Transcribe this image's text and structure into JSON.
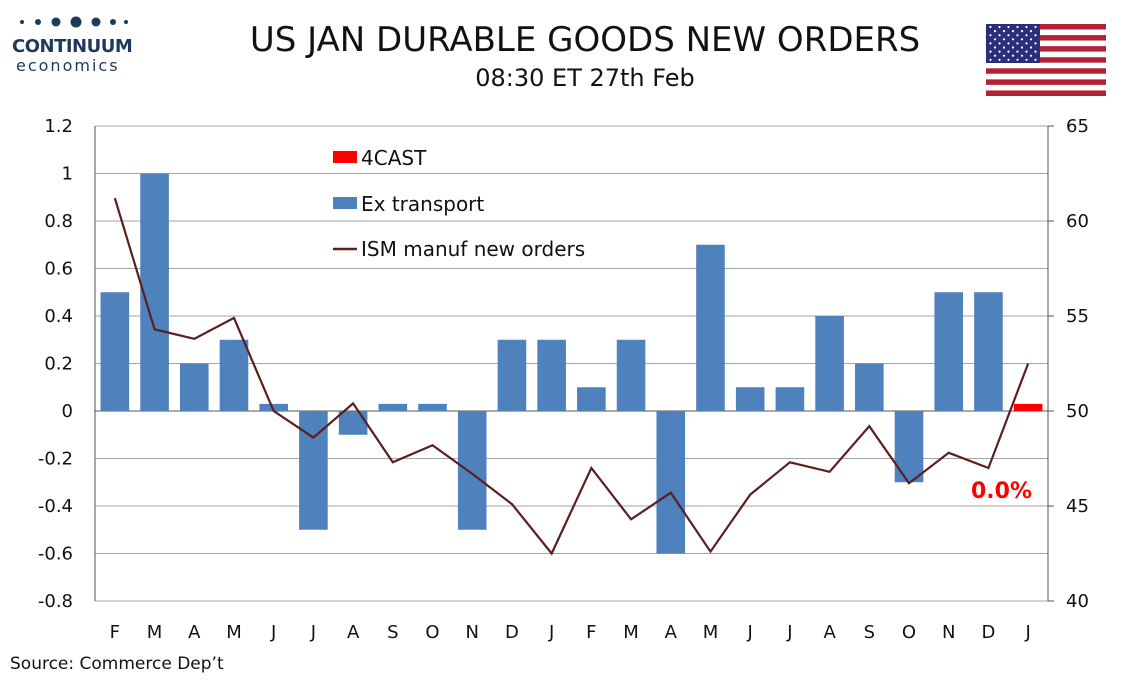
{
  "header": {
    "logo_name": "CONTINUUM",
    "logo_sub": "economics",
    "title": "US JAN DURABLE GOODS NEW ORDERS",
    "subtitle": "08:30 ET 27th Feb",
    "flag_icon": "us-flag-icon"
  },
  "footer": {
    "source": "Source: Commerce Dep’t"
  },
  "colors": {
    "bar": "#4f81bd",
    "line": "#5a1f1f",
    "forecast": "#ff0000",
    "grid": "#a6a6a6",
    "logo": "#1d3a5c"
  },
  "chart_data": {
    "type": "bar",
    "categories": [
      "F",
      "M",
      "A",
      "M",
      "J",
      "J",
      "A",
      "S",
      "O",
      "N",
      "D",
      "J",
      "F",
      "M",
      "A",
      "M",
      "J",
      "J",
      "A",
      "S",
      "O",
      "N",
      "D",
      "J"
    ],
    "series": [
      {
        "name": "Ex transport",
        "type": "bar",
        "axis": "left",
        "values": [
          0.5,
          1.0,
          0.2,
          0.3,
          0.03,
          -0.5,
          -0.1,
          0.03,
          0.03,
          -0.5,
          0.3,
          0.3,
          0.1,
          0.3,
          -0.6,
          0.7,
          0.1,
          0.1,
          0.4,
          0.2,
          -0.3,
          0.5,
          0.5,
          null
        ]
      },
      {
        "name": "4CAST",
        "type": "bar",
        "axis": "left",
        "values": [
          null,
          null,
          null,
          null,
          null,
          null,
          null,
          null,
          null,
          null,
          null,
          null,
          null,
          null,
          null,
          null,
          null,
          null,
          null,
          null,
          null,
          null,
          null,
          0.03
        ]
      },
      {
        "name": "ISM manuf new orders",
        "type": "line",
        "axis": "right",
        "values": [
          61.2,
          54.3,
          53.8,
          54.9,
          50.0,
          48.6,
          50.4,
          47.3,
          48.2,
          46.7,
          45.1,
          42.5,
          47.0,
          44.3,
          45.7,
          42.6,
          45.6,
          47.3,
          46.8,
          49.2,
          46.2,
          47.8,
          47.0,
          52.5
        ]
      }
    ],
    "left_axis": {
      "ylim": [
        -0.8,
        1.2
      ],
      "ticks": [
        "1.2",
        "1",
        "0.8",
        "0.6",
        "0.4",
        "0.2",
        "0",
        "-0.2",
        "-0.4",
        "-0.6",
        "-0.8"
      ]
    },
    "right_axis": {
      "ylim": [
        40,
        65
      ],
      "ticks": [
        "65",
        "60",
        "55",
        "50",
        "45",
        "40"
      ]
    },
    "legend": {
      "placement": "top-center",
      "entries": [
        "4CAST",
        "Ex transport",
        "ISM manuf new orders"
      ]
    },
    "forecast_label": "0.0%",
    "grid": true
  }
}
